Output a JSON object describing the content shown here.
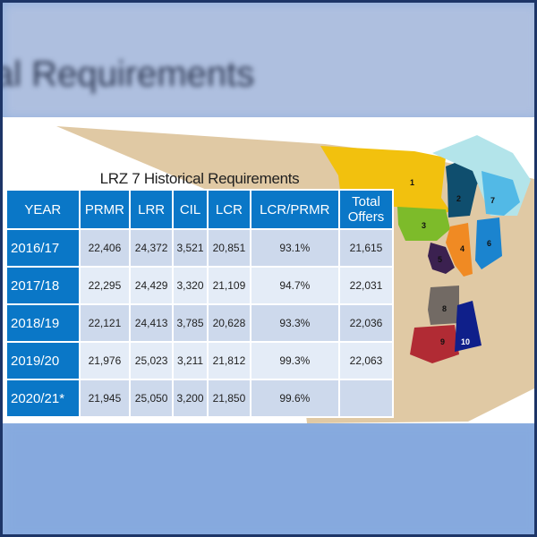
{
  "background": {
    "blurred_title": "al Requirements"
  },
  "table": {
    "title": "LRZ 7 Historical Requirements",
    "headers": [
      "YEAR",
      "PRMR",
      "LRR",
      "CIL",
      "LCR",
      "LCR/PRMR",
      "Total Offers"
    ],
    "rows": [
      [
        "2016/17",
        "22,406",
        "24,372",
        "3,521",
        "20,851",
        "93.1%",
        "21,615"
      ],
      [
        "2017/18",
        "22,295",
        "24,429",
        "3,320",
        "21,109",
        "94.7%",
        "22,031"
      ],
      [
        "2018/19",
        "22,121",
        "24,413",
        "3,785",
        "20,628",
        "93.3%",
        "22,036"
      ],
      [
        "2019/20",
        "21,976",
        "25,023",
        "3,211",
        "21,812",
        "99.3%",
        "22,063"
      ],
      [
        "2020/21*",
        "21,945",
        "25,050",
        "3,200",
        "21,850",
        "99.6%",
        ""
      ]
    ]
  },
  "map": {
    "zone_labels": [
      "1",
      "2",
      "3",
      "4",
      "5",
      "6",
      "7",
      "8",
      "9",
      "10"
    ]
  },
  "colors": {
    "header_blue": "#0a77c7",
    "row_dark": "#cdd9ec",
    "row_light": "#e4ecf7",
    "border": "#1d3567"
  }
}
